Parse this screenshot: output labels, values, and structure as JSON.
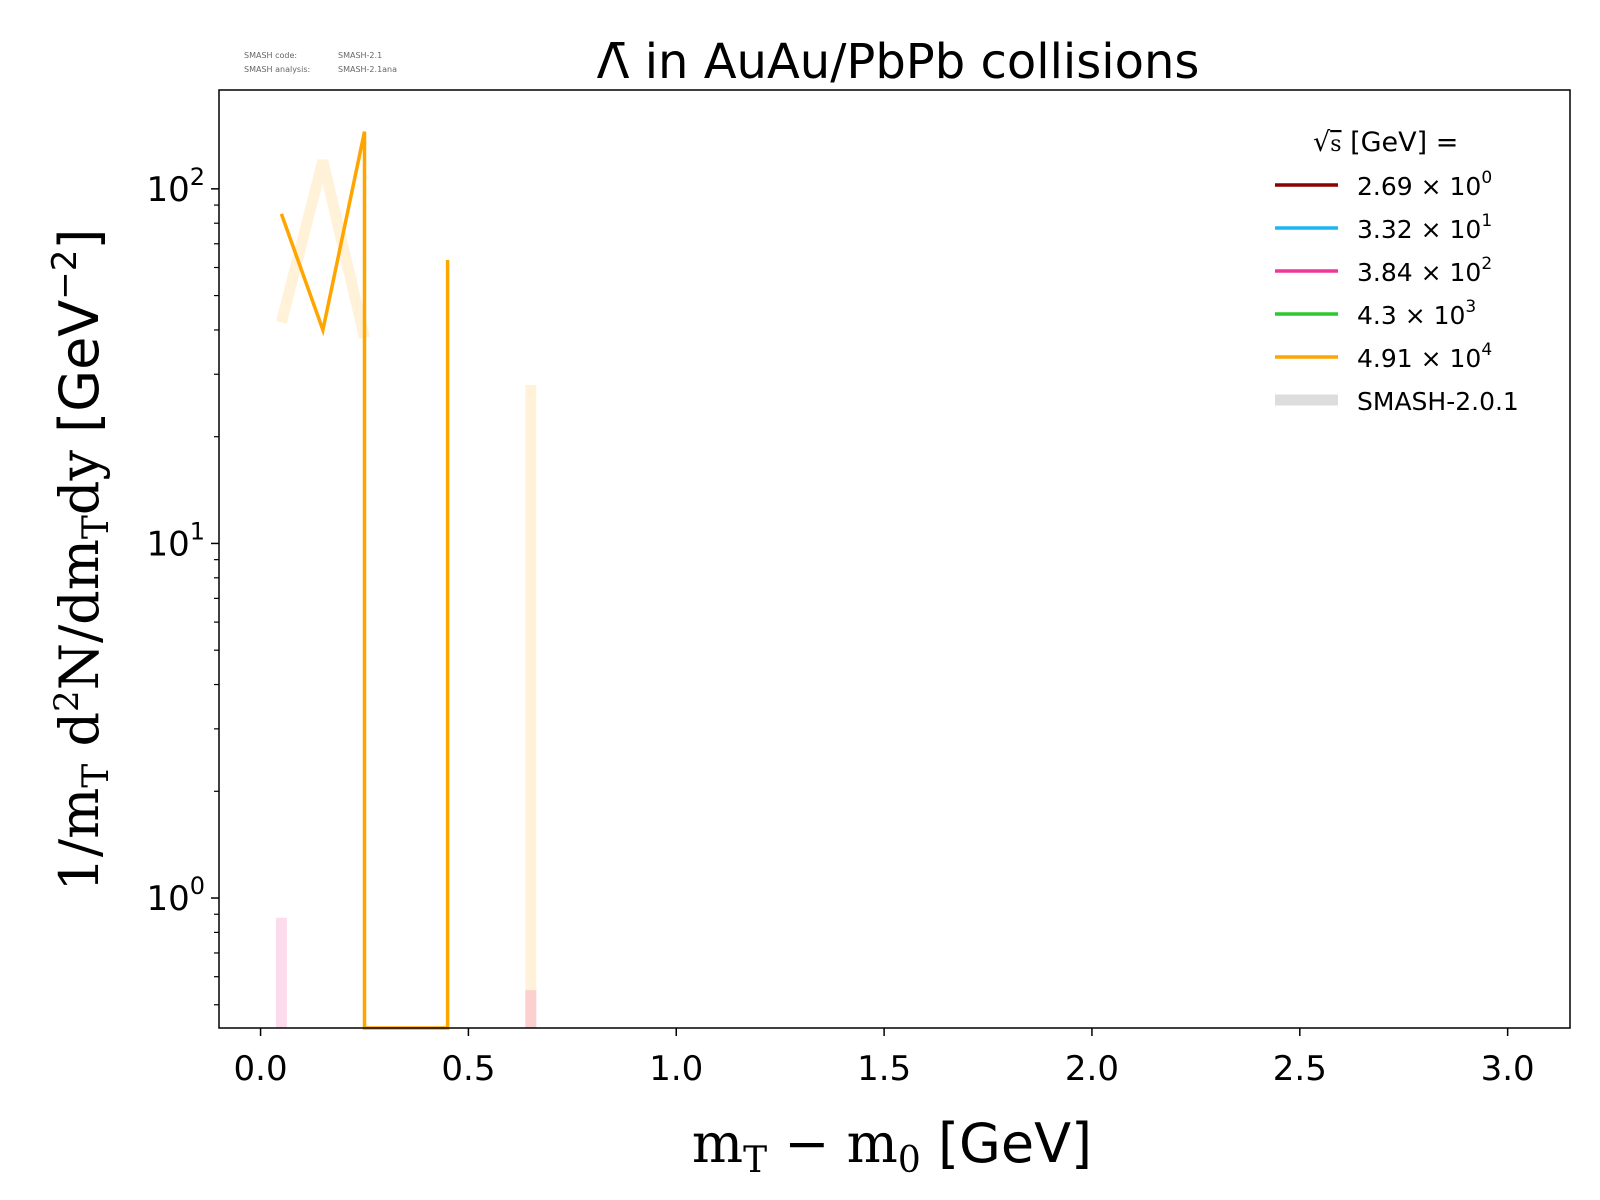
{
  "watermark": {
    "code_label": "SMASH code:",
    "code_value": "SMASH-2.1",
    "analysis_label": "SMASH analysis:",
    "analysis_value": "SMASH-2.1ana"
  },
  "chart_data": {
    "type": "line",
    "title": "Λ̄ in AuAu/PbPb collisions",
    "xlabel": "m_T − m_0 [GeV]",
    "ylabel": "1/m_T d²N/dm_T dy [GeV⁻²]",
    "xlim": [
      -0.1,
      3.15
    ],
    "ylim": [
      0.43,
      190
    ],
    "yscale": "log",
    "grid": false,
    "x_ticks": [
      0.0,
      0.5,
      1.0,
      1.5,
      2.0,
      2.5,
      3.0
    ],
    "x_tick_labels": [
      "0.0",
      "0.5",
      "1.0",
      "1.5",
      "2.0",
      "2.5",
      "3.0"
    ],
    "y_ticks": [
      1,
      10,
      100
    ],
    "legend": {
      "placement": "top-right",
      "title": "√s  [GeV] =",
      "entries": [
        {
          "mantissa": "2.69",
          "exp": "0",
          "color": "#8b0000"
        },
        {
          "mantissa": "3.32",
          "exp": "1",
          "color": "#1fb6f0"
        },
        {
          "mantissa": "3.84",
          "exp": "2",
          "color": "#f0369b"
        },
        {
          "mantissa": "4.3",
          "exp": "3",
          "color": "#2fc72f"
        },
        {
          "mantissa": "4.91",
          "exp": "4",
          "color": "#ffa500"
        }
      ],
      "reference_label": "SMASH-2.0.1",
      "reference_color": "#dddddd"
    },
    "series": [
      {
        "energy": "4.91e4",
        "color": "#ffa500",
        "points": [
          [
            0.05,
            85
          ],
          [
            0.15,
            40
          ],
          [
            0.25,
            145
          ],
          [
            0.25,
            0.43
          ],
          [
            0.45,
            0.43
          ],
          [
            0.45,
            63
          ],
          [
            0.45,
            0.43
          ]
        ]
      }
    ],
    "reference_series": [
      {
        "color": "#ffa500",
        "opacity": 0.15,
        "points": [
          [
            0.05,
            42
          ],
          [
            0.15,
            120
          ],
          [
            0.25,
            38
          ]
        ]
      },
      {
        "color": "#ffa500",
        "opacity": 0.15,
        "points": [
          [
            0.65,
            28
          ],
          [
            0.65,
            0.43
          ]
        ]
      },
      {
        "color": "#f0369b",
        "opacity": 0.18,
        "points": [
          [
            0.05,
            0.88
          ],
          [
            0.05,
            0.43
          ]
        ]
      },
      {
        "color": "#f0369b",
        "opacity": 0.18,
        "points": [
          [
            0.65,
            0.55
          ],
          [
            0.65,
            0.43
          ]
        ]
      }
    ]
  }
}
